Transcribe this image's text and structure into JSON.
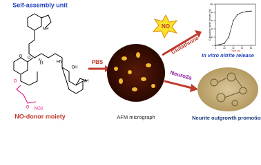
{
  "labels": {
    "self_assembly": "Self-assembly unit",
    "no_donor": "NO-donor moiety",
    "pbs": "PBS",
    "no": "NO",
    "glutathione": "Glutathione",
    "release": "In vitro nitrite release",
    "neuro": "Neuro2a",
    "afm": "AFM micrograph",
    "neurite": "Neurite outgrowth promotion"
  },
  "structure": {
    "atoms": [
      "NH",
      "O",
      "HN",
      "H",
      "N",
      "O",
      "OH",
      "NH",
      "O",
      "O",
      "NO2"
    ]
  },
  "chart_data": {
    "type": "line",
    "xlabel": "Time (h)",
    "ylabel": "Cumulative nitrite release (%)",
    "x": [
      0,
      10,
      20,
      30,
      40,
      50,
      60,
      70,
      80
    ],
    "series": [
      {
        "name": "nitrite",
        "color": "#333333",
        "values": [
          0,
          2,
          5,
          20,
          60,
          75,
          80,
          82,
          83
        ]
      }
    ],
    "xlim": [
      0,
      90
    ],
    "xticks": [
      0,
      20,
      40,
      60,
      80
    ],
    "ylim": [
      0,
      100
    ],
    "yticks": [
      0,
      20,
      40,
      60,
      80,
      100
    ]
  }
}
